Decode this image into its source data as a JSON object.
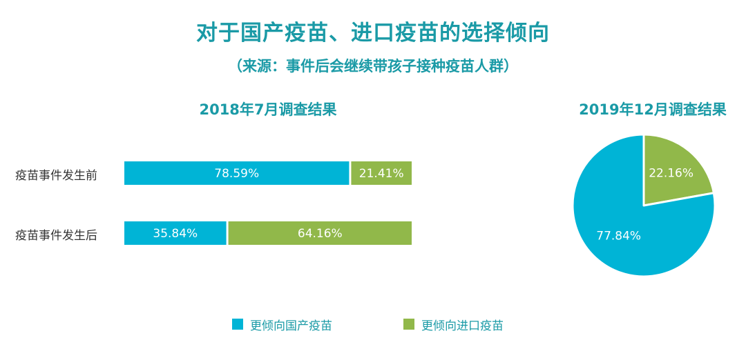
{
  "title": "对于国产疫苗、进口疫苗的选择倾向",
  "subtitle": "（来源：事件后会继续带孩子接种疫苗人群）",
  "colors": {
    "domestic": "#00b4d6",
    "imported": "#91b84a",
    "title": "#1a9aa6"
  },
  "legend": [
    {
      "label": "更倾向国产疫苗",
      "color": "#00b4d6"
    },
    {
      "label": "更倾向进口疫苗",
      "color": "#91b84a"
    }
  ],
  "chart_data": [
    {
      "type": "bar",
      "orientation": "horizontal-stacked-100",
      "title": "2018年7月调查结果",
      "categories": [
        "疫苗事件发生前",
        "疫苗事件发生后"
      ],
      "series": [
        {
          "name": "更倾向国产疫苗",
          "values": [
            78.59,
            35.84
          ],
          "labels": [
            "78.59%",
            "35.84%"
          ]
        },
        {
          "name": "更倾向进口疫苗",
          "values": [
            21.41,
            64.16
          ],
          "labels": [
            "21.41%",
            "64.16%"
          ]
        }
      ],
      "unit": "%",
      "grid": false
    },
    {
      "type": "pie",
      "title": "2019年12月调查结果",
      "slices": [
        {
          "name": "更倾向国产疫苗",
          "value": 77.84,
          "label": "77.84%"
        },
        {
          "name": "更倾向进口疫苗",
          "value": 22.16,
          "label": "22.16%"
        }
      ]
    }
  ]
}
